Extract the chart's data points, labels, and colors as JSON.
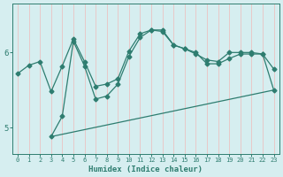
{
  "xlabel": "Humidex (Indice chaleur)",
  "background_color": "#d6eef0",
  "grid_color": "#e8c8c8",
  "line_color": "#2e7d70",
  "xlim": [
    -0.5,
    23.5
  ],
  "ylim": [
    4.65,
    6.65
  ],
  "yticks": [
    5,
    6
  ],
  "xticks": [
    0,
    1,
    2,
    3,
    4,
    5,
    6,
    7,
    8,
    9,
    10,
    11,
    12,
    13,
    14,
    15,
    16,
    17,
    18,
    19,
    20,
    21,
    22,
    23
  ],
  "curve1_x": [
    0,
    1,
    2,
    3,
    4,
    5,
    6,
    7,
    8,
    9,
    10,
    11,
    12,
    13,
    14,
    15,
    16,
    17,
    18,
    19,
    20,
    21,
    22,
    23
  ],
  "curve1_y": [
    5.72,
    5.83,
    5.88,
    5.48,
    5.82,
    6.18,
    5.88,
    5.55,
    5.58,
    5.65,
    6.02,
    6.25,
    6.3,
    6.28,
    6.1,
    6.05,
    5.98,
    5.9,
    5.88,
    6.0,
    6.0,
    6.0,
    5.98,
    5.78
  ],
  "curve2_x": [
    3,
    4,
    5,
    6,
    7,
    8,
    9,
    10,
    11,
    12,
    13,
    14,
    15,
    16,
    17,
    18,
    19,
    20,
    21,
    22,
    23
  ],
  "curve2_y": [
    4.88,
    5.15,
    6.15,
    5.82,
    5.38,
    5.42,
    5.58,
    5.95,
    6.2,
    6.3,
    6.3,
    6.1,
    6.05,
    6.0,
    5.85,
    5.85,
    5.92,
    5.98,
    5.98,
    5.98,
    5.5
  ],
  "curve3_x": [
    3,
    23
  ],
  "curve3_y": [
    4.88,
    5.5
  ],
  "marker": "D",
  "marker_size": 2.5,
  "line_width": 0.9
}
